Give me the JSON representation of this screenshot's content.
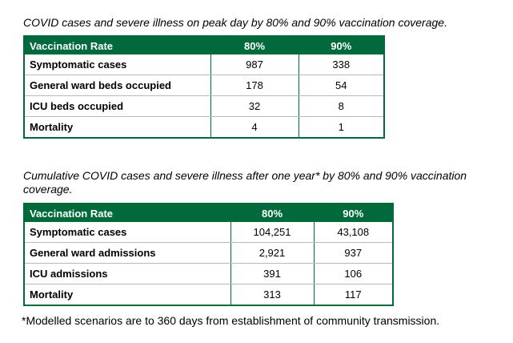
{
  "table1": {
    "caption": "COVID cases and severe illness on peak day by 80% and 90% vaccination coverage.",
    "headers": [
      "Vaccination Rate",
      "80%",
      "90%"
    ],
    "rows": [
      [
        "Symptomatic cases",
        "987",
        "338"
      ],
      [
        "General ward beds occupied",
        "178",
        "54"
      ],
      [
        "ICU beds occupied",
        "32",
        "8"
      ],
      [
        "Mortality",
        "4",
        "1"
      ]
    ]
  },
  "table2": {
    "caption": "Cumulative COVID cases and severe illness after one year* by 80% and 90% vaccination coverage.",
    "headers": [
      "Vaccination Rate",
      "80%",
      "90%"
    ],
    "rows": [
      [
        "Symptomatic cases",
        "104,251",
        "43,108"
      ],
      [
        "General ward admissions",
        "2,921",
        "937"
      ],
      [
        "ICU admissions",
        "391",
        "106"
      ],
      [
        "Mortality",
        "313",
        "117"
      ]
    ],
    "footnote": "*Modelled scenarios are to 360 days from establishment of community transmission."
  },
  "colors": {
    "header_bg": "#006a3d",
    "header_text": "#ffffff"
  }
}
